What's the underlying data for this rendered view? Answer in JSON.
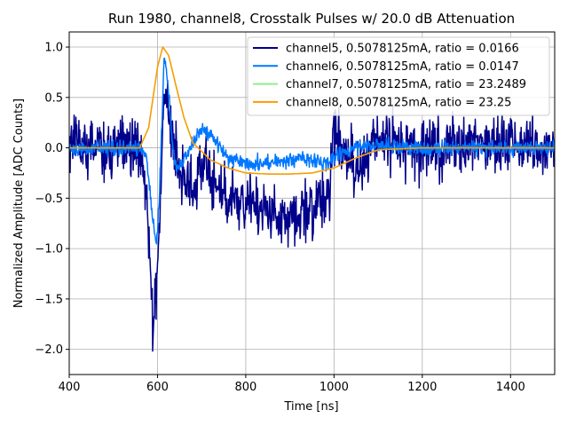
{
  "chart_data": {
    "type": "line",
    "title": "Run 1980, channel8, Crosstalk Pulses w/ 20.0 dB Attenuation",
    "xlabel": "Time [ns]",
    "ylabel": "Normalized Amplitude [ADC Counts]",
    "xlim": [
      400,
      1500
    ],
    "ylim": [
      -2.25,
      1.15
    ],
    "xticks": [
      400,
      600,
      800,
      1000,
      1200,
      1400
    ],
    "yticks": [
      -2.0,
      -1.5,
      -1.0,
      -0.5,
      0.0,
      0.5,
      1.0
    ],
    "xtick_labels": [
      "400",
      "600",
      "800",
      "1000",
      "1200",
      "1400"
    ],
    "ytick_labels": [
      "−2.0",
      "−1.5",
      "−1.0",
      "−0.5",
      "0.0",
      "0.5",
      "1.0"
    ],
    "grid": true,
    "legend_position": "top-right",
    "series": [
      {
        "name": "channel5, 0.5078125mA, ratio = 0.0166",
        "color": "#00008b",
        "noise": 0.18,
        "x": [
          400,
          440,
          480,
          520,
          560,
          575,
          585,
          590,
          595,
          605,
          615,
          625,
          640,
          660,
          680,
          700,
          720,
          760,
          800,
          850,
          900,
          950,
          990,
          1000,
          1020,
          1060,
          1100,
          1200,
          1300,
          1400,
          1500
        ],
        "values": [
          0.1,
          0.05,
          0.0,
          0.05,
          0.0,
          -0.5,
          -1.2,
          -1.9,
          -1.5,
          -0.7,
          0.6,
          0.4,
          -0.1,
          -0.35,
          -0.4,
          -0.1,
          -0.25,
          -0.5,
          -0.55,
          -0.6,
          -0.7,
          -0.6,
          -0.5,
          0.2,
          -0.1,
          -0.2,
          0.1,
          0.0,
          0.0,
          0.05,
          0.0
        ]
      },
      {
        "name": "channel6, 0.5078125mA, ratio = 0.0147",
        "color": "#0077ff",
        "noise": 0.045,
        "x": [
          400,
          500,
          560,
          575,
          590,
          598,
          605,
          615,
          625,
          635,
          645,
          660,
          680,
          700,
          720,
          740,
          760,
          800,
          850,
          900,
          950,
          980,
          1000,
          1050,
          1100,
          1200,
          1300,
          1500
        ],
        "values": [
          0.0,
          0.0,
          0.0,
          -0.1,
          -0.75,
          -0.95,
          -0.4,
          0.9,
          0.6,
          -0.05,
          -0.2,
          -0.1,
          0.05,
          0.2,
          0.15,
          0.0,
          -0.1,
          -0.15,
          -0.15,
          -0.12,
          -0.12,
          -0.15,
          -0.1,
          0.0,
          0.03,
          0.0,
          0.0,
          0.0
        ]
      },
      {
        "name": "channel7, 0.5078125mA, ratio = 23.2489",
        "color": "#90ee90",
        "noise": 0,
        "x": [
          400,
          560,
          580,
          600,
          612,
          625,
          640,
          660,
          680,
          720,
          760,
          800,
          850,
          900,
          950,
          1000,
          1050,
          1100,
          1200,
          1500
        ],
        "values": [
          0.0,
          0.0,
          0.2,
          0.8,
          1.0,
          0.92,
          0.65,
          0.3,
          0.05,
          -0.12,
          -0.2,
          -0.25,
          -0.26,
          -0.26,
          -0.25,
          -0.2,
          -0.1,
          -0.02,
          0.0,
          0.0
        ]
      },
      {
        "name": "channel8, 0.5078125mA, ratio = 23.25",
        "color": "#ff9900",
        "noise": 0,
        "x": [
          400,
          560,
          580,
          600,
          612,
          625,
          640,
          660,
          680,
          720,
          760,
          800,
          850,
          900,
          950,
          1000,
          1050,
          1100,
          1200,
          1500
        ],
        "values": [
          0.0,
          0.0,
          0.2,
          0.8,
          1.0,
          0.92,
          0.65,
          0.3,
          0.05,
          -0.12,
          -0.2,
          -0.25,
          -0.26,
          -0.26,
          -0.25,
          -0.2,
          -0.1,
          -0.02,
          0.0,
          0.0
        ]
      }
    ]
  }
}
